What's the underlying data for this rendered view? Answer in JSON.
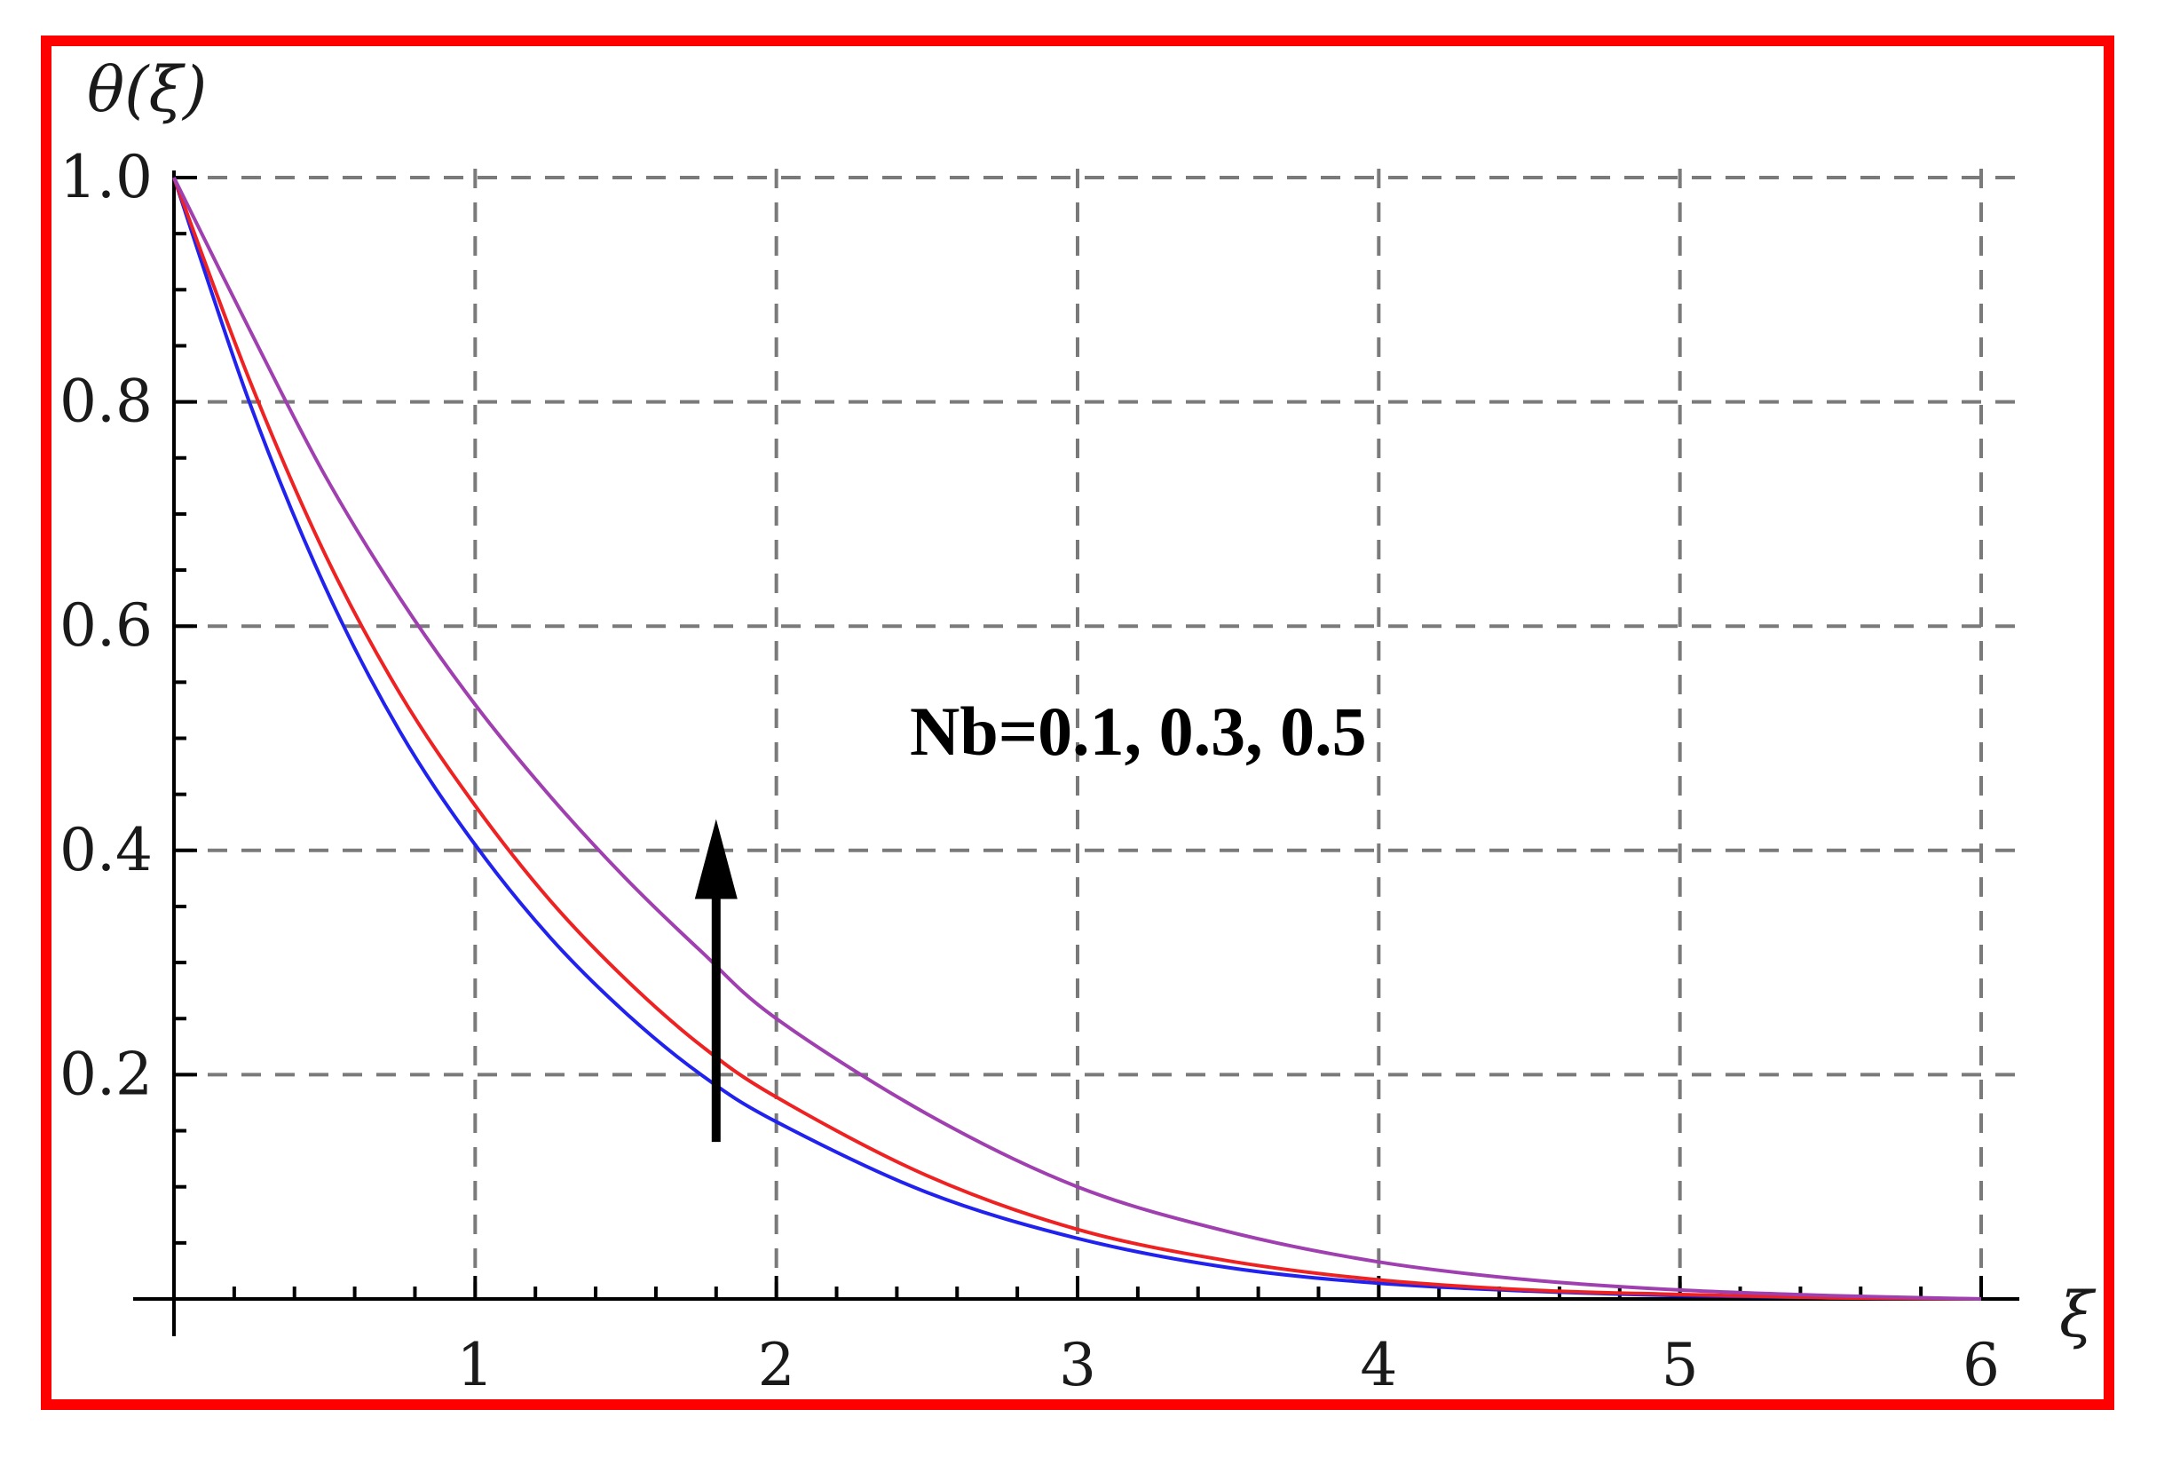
{
  "chart_data": {
    "type": "line",
    "ylabel": "θ(ξ)",
    "xlabel": "ξ",
    "xlim": [
      0,
      6
    ],
    "ylim": [
      0,
      1.05
    ],
    "x_ticks": [
      1,
      2,
      3,
      4,
      5,
      6
    ],
    "x_tick_labels": [
      "1",
      "2",
      "3",
      "4",
      "5",
      "6"
    ],
    "y_ticks": [
      0.2,
      0.4,
      0.6,
      0.8,
      1.0
    ],
    "y_tick_labels": [
      "0.2",
      "0.4",
      "0.6",
      "0.8",
      "1.0"
    ],
    "grid": true,
    "annotation": "Nb=0.1, 0.3, 0.5",
    "arrow": {
      "x": 1.8,
      "y_from": 0.14,
      "y_to": 0.42,
      "direction": "up"
    },
    "series": [
      {
        "color": "#2222ee",
        "x": [
          0,
          0.25,
          0.5,
          0.75,
          1.0,
          1.25,
          1.5,
          1.75,
          2.0,
          2.5,
          3.0,
          3.5,
          4.0,
          4.5,
          5.0,
          5.5,
          6.0
        ],
        "y": [
          1.0,
          0.8,
          0.636,
          0.506,
          0.405,
          0.322,
          0.255,
          0.2,
          0.158,
          0.095,
          0.054,
          0.028,
          0.014,
          0.007,
          0.003,
          0.001,
          0.0
        ]
      },
      {
        "color": "#ee2222",
        "x": [
          0,
          0.25,
          0.5,
          0.75,
          1.0,
          1.25,
          1.5,
          1.75,
          2.0,
          2.5,
          3.0,
          3.5,
          4.0,
          4.5,
          5.0,
          5.5,
          6.0
        ],
        "y": [
          1.0,
          0.82,
          0.665,
          0.54,
          0.44,
          0.355,
          0.285,
          0.226,
          0.18,
          0.11,
          0.062,
          0.034,
          0.017,
          0.008,
          0.004,
          0.001,
          0.0
        ]
      },
      {
        "color": "#a040b0",
        "x": [
          0,
          0.25,
          0.5,
          0.75,
          1.0,
          1.25,
          1.5,
          1.75,
          2.0,
          2.5,
          3.0,
          3.5,
          4.0,
          4.5,
          5.0,
          5.5,
          6.0
        ],
        "y": [
          1.0,
          0.865,
          0.735,
          0.625,
          0.53,
          0.448,
          0.375,
          0.31,
          0.25,
          0.165,
          0.1,
          0.06,
          0.033,
          0.017,
          0.008,
          0.003,
          0.0
        ]
      }
    ]
  }
}
